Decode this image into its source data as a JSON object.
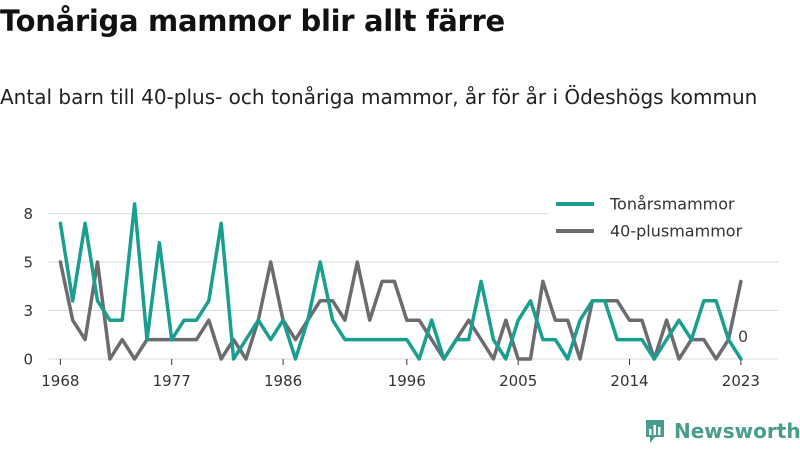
{
  "title": "Tonåriga mammor blir allt färre",
  "subtitle": "Antal barn till 40-plus- och tonåriga mammor, år för år i Ödeshögs kommun",
  "logo": {
    "text": "Newsworthy",
    "icon": "newsworthy-chart-icon"
  },
  "colors": {
    "teen": "#1a9e8e",
    "plus40": "#6b6b70",
    "grid": "#d9d9d9"
  },
  "chart_data": {
    "type": "line",
    "x": [
      1968,
      1969,
      1970,
      1971,
      1972,
      1973,
      1974,
      1975,
      1976,
      1977,
      1978,
      1979,
      1980,
      1981,
      1982,
      1983,
      1984,
      1985,
      1986,
      1987,
      1988,
      1989,
      1990,
      1991,
      1992,
      1993,
      1994,
      1995,
      1996,
      1997,
      1998,
      1999,
      2000,
      2001,
      2002,
      2003,
      2004,
      2005,
      2006,
      2007,
      2008,
      2009,
      2010,
      2011,
      2012,
      2013,
      2014,
      2015,
      2016,
      2017,
      2018,
      2019,
      2020,
      2021,
      2022,
      2023
    ],
    "series": [
      {
        "name": "Tonårsmammor",
        "values": [
          7,
          3,
          7,
          3,
          2,
          2,
          8,
          1,
          6,
          1,
          2,
          2,
          3,
          7,
          0,
          1,
          2,
          1,
          2,
          0,
          2,
          5,
          2,
          1,
          1,
          1,
          1,
          1,
          1,
          0,
          2,
          0,
          1,
          1,
          4,
          1,
          0,
          2,
          3,
          1,
          1,
          0,
          2,
          3,
          3,
          1,
          1,
          1,
          0,
          1,
          2,
          1,
          3,
          3,
          1,
          0
        ]
      },
      {
        "name": "40-plusmammor",
        "values": [
          5,
          2,
          1,
          5,
          0,
          1,
          0,
          1,
          1,
          1,
          1,
          1,
          2,
          0,
          1,
          0,
          2,
          5,
          2,
          1,
          2,
          3,
          3,
          2,
          5,
          2,
          4,
          4,
          2,
          2,
          1,
          0,
          1,
          2,
          1,
          0,
          2,
          0,
          0,
          4,
          2,
          2,
          0,
          3,
          3,
          3,
          2,
          2,
          0,
          2,
          0,
          1,
          1,
          0,
          1,
          4
        ]
      }
    ],
    "x_ticks": [
      "1968",
      "1977",
      "1986",
      "1996",
      "2005",
      "2014",
      "2023"
    ],
    "y_ticks": [
      "0",
      "3",
      "5",
      "8"
    ],
    "y_tick_values": [
      0,
      2.5,
      5,
      7.5
    ],
    "ylim": [
      0,
      8.2
    ],
    "xlim": [
      1967,
      2026
    ],
    "end_label": "0",
    "legend_position": "top-right",
    "grid": true
  }
}
